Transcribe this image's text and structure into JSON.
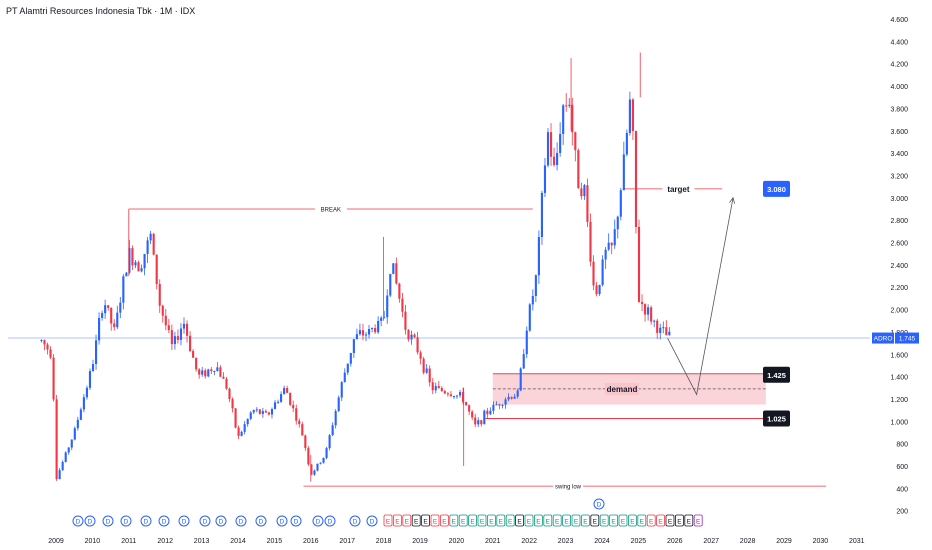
{
  "header": {
    "title": "PT Alamtri Resources Indonesia Tbk · 1M · IDX"
  },
  "price_axis": {
    "ticks": [
      "4.600",
      "4.400",
      "4.200",
      "4.000",
      "3.800",
      "3.600",
      "3.400",
      "3.200",
      "3.000",
      "2.800",
      "2.600",
      "2.400",
      "2.200",
      "2.000",
      "1.800",
      "1.600",
      "1.400",
      "1.200",
      "1.000",
      "800",
      "600",
      "400",
      "200"
    ],
    "ticker_label": "ADRO",
    "current_price_label": "1.745"
  },
  "time_axis": {
    "ticks": [
      "2009",
      "2010",
      "2011",
      "2012",
      "2013",
      "2014",
      "2015",
      "2016",
      "2017",
      "2018",
      "2019",
      "2020",
      "2021",
      "2022",
      "2023",
      "2024",
      "2025",
      "2026",
      "2027",
      "2028",
      "2029",
      "2030",
      "2031"
    ]
  },
  "annotations": {
    "break_label": "BREAK",
    "target_label": "target",
    "target_price": "3.080",
    "demand_label": "demand",
    "demand_top_price": "1.425",
    "demand_bottom_price": "1.025",
    "swing_low_label": "swing low"
  },
  "colors": {
    "up": "#2962ff",
    "down": "#f23645",
    "demand_fill": "#f8c5cc",
    "target_badge": "#2962ff",
    "price_line": "#b2c5ff"
  },
  "event_markers": {
    "dividend_glyph": "D",
    "earnings_glyph": "E"
  },
  "chart_data": {
    "type": "candlestick",
    "title": "PT Alamtri Resources Indonesia Tbk · 1M · IDX",
    "ticker": "ADRO",
    "interval": "1M",
    "exchange": "IDX",
    "ylim": [
      200,
      4600
    ],
    "xlim": [
      2008.5,
      2031.2
    ],
    "last_price": 1745,
    "path": [
      [
        2008.6,
        1720
      ],
      [
        2008.9,
        1600
      ],
      [
        2009.0,
        480
      ],
      [
        2009.5,
        900
      ],
      [
        2010.0,
        1500
      ],
      [
        2010.3,
        2100
      ],
      [
        2010.6,
        1800
      ],
      [
        2011.0,
        2500
      ],
      [
        2011.3,
        2400
      ],
      [
        2011.6,
        2650
      ],
      [
        2011.85,
        2050
      ],
      [
        2012.2,
        1650
      ],
      [
        2012.5,
        1900
      ],
      [
        2012.9,
        1400
      ],
      [
        2013.4,
        1500
      ],
      [
        2013.7,
        1300
      ],
      [
        2014.0,
        850
      ],
      [
        2014.4,
        1100
      ],
      [
        2014.8,
        1050
      ],
      [
        2015.3,
        1300
      ],
      [
        2015.8,
        850
      ],
      [
        2016.0,
        520
      ],
      [
        2016.4,
        700
      ],
      [
        2016.9,
        1400
      ],
      [
        2017.2,
        1750
      ],
      [
        2017.6,
        1800
      ],
      [
        2018.0,
        1900
      ],
      [
        2018.2,
        2450
      ],
      [
        2018.6,
        1850
      ],
      [
        2019.0,
        1600
      ],
      [
        2019.3,
        1300
      ],
      [
        2019.9,
        1250
      ],
      [
        2020.2,
        1200
      ],
      [
        2020.5,
        950
      ],
      [
        2020.9,
        1100
      ],
      [
        2021.3,
        1200
      ],
      [
        2021.7,
        1250
      ],
      [
        2021.9,
        1800
      ],
      [
        2022.2,
        2300
      ],
      [
        2022.5,
        3600
      ],
      [
        2022.7,
        3200
      ],
      [
        2022.9,
        3800
      ],
      [
        2023.1,
        3900
      ],
      [
        2023.3,
        3200
      ],
      [
        2023.5,
        3100
      ],
      [
        2023.8,
        2100
      ],
      [
        2024.1,
        2500
      ],
      [
        2024.3,
        2550
      ],
      [
        2024.6,
        3300
      ],
      [
        2024.8,
        3950
      ],
      [
        2025.0,
        2100
      ],
      [
        2025.3,
        1950
      ],
      [
        2025.6,
        1800
      ],
      [
        2025.9,
        1745
      ]
    ],
    "wicks": [
      [
        2011.0,
        2900,
        2300
      ],
      [
        2018.0,
        2650,
        1900
      ],
      [
        2020.2,
        1300,
        600
      ],
      [
        2023.15,
        4250,
        3600
      ],
      [
        2025.05,
        4300,
        3900
      ],
      [
        2016.0,
        700,
        460
      ]
    ],
    "levels": {
      "break": 2900,
      "target": 3080,
      "demand_top": 1425,
      "demand_mid": 1290,
      "demand_bottom": 1150,
      "demand_marker": 1025,
      "swing_low": 420
    },
    "projection": [
      [
        2025.8,
        1745
      ],
      [
        2026.6,
        1240
      ],
      [
        2027.6,
        3000
      ]
    ]
  }
}
